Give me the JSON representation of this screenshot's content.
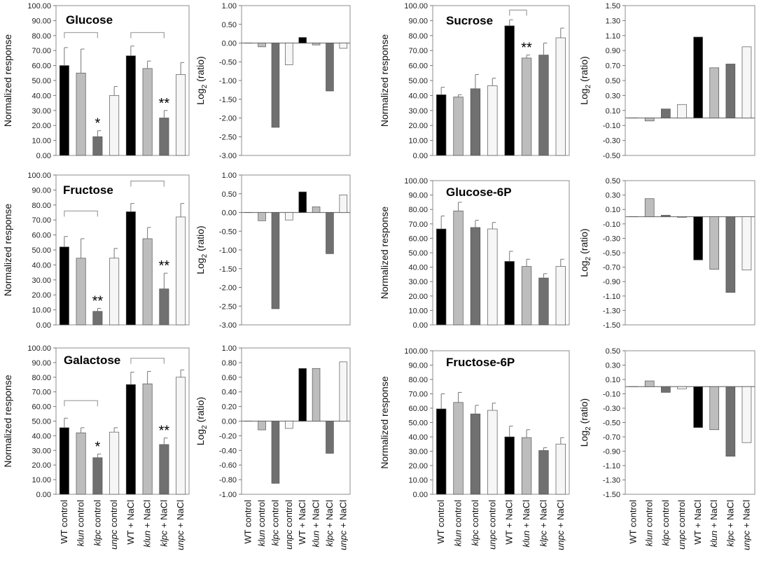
{
  "colors": {
    "wt": "#000000",
    "klun": "#bdbdbd",
    "klpc": "#707070",
    "unpc": "#f6f6f6",
    "bracket": "#a6a6a6",
    "grid": "#d0d0d0"
  },
  "categories": [
    {
      "genotype": "WT",
      "italic": false,
      "condition": " control",
      "fill": "wt"
    },
    {
      "genotype": "klun",
      "italic": true,
      "condition": " control",
      "fill": "klun"
    },
    {
      "genotype": "klpc",
      "italic": true,
      "condition": " control",
      "fill": "klpc"
    },
    {
      "genotype": "unpc",
      "italic": true,
      "condition": " control",
      "fill": "unpc"
    },
    {
      "genotype": "WT",
      "italic": false,
      "condition": " + NaCl",
      "fill": "wt"
    },
    {
      "genotype": "klun",
      "italic": true,
      "condition": " + NaCl",
      "fill": "klun"
    },
    {
      "genotype": "klpc",
      "italic": true,
      "condition": " + NaCl",
      "fill": "klpc"
    },
    {
      "genotype": "unpc",
      "italic": true,
      "condition": " + NaCl",
      "fill": "unpc"
    }
  ],
  "chart_data": [
    {
      "id": "glucose-response",
      "type": "bar",
      "title": "Glucose",
      "ylabel": "Normalized response",
      "ylim": [
        0,
        100
      ],
      "ytick_step": 10,
      "ytick_decimals": 2,
      "values": [
        60,
        55,
        12.5,
        40,
        66.5,
        58,
        25,
        54
      ],
      "errors": [
        12,
        16,
        4,
        6,
        6.5,
        5,
        5,
        8
      ],
      "annotations": [
        {
          "index": 2,
          "text": "*"
        },
        {
          "index": 6,
          "text": "**"
        }
      ],
      "brackets": [
        {
          "from": 0,
          "to": 2,
          "y": 82
        },
        {
          "from": 4,
          "to": 6,
          "y": 82
        }
      ]
    },
    {
      "id": "glucose-log2",
      "type": "bar",
      "title": "",
      "ylabel": "Log2 (ratio)",
      "ylim": [
        -3.0,
        1.0
      ],
      "ytick_step": 0.5,
      "ytick_decimals": 2,
      "values": [
        0,
        -0.1,
        -2.25,
        -0.58,
        0.15,
        -0.05,
        -1.28,
        -0.14
      ]
    },
    {
      "id": "sucrose-response",
      "type": "bar",
      "title": "Sucrose",
      "ylabel": "Normalized response",
      "ylim": [
        0,
        100
      ],
      "ytick_step": 10,
      "ytick_decimals": 2,
      "values": [
        40.5,
        39,
        44.5,
        46.5,
        86.5,
        65,
        67,
        78.5
      ],
      "errors": [
        5,
        1.5,
        9.5,
        5,
        4,
        2,
        8,
        6.5
      ],
      "annotations": [
        {
          "index": 5,
          "text": "**"
        }
      ],
      "brackets": [
        {
          "from": 4,
          "to": 5,
          "y": 97
        }
      ]
    },
    {
      "id": "sucrose-log2",
      "type": "bar",
      "title": "",
      "ylabel": "Log2 (ratio)",
      "ylim": [
        -0.5,
        1.5
      ],
      "ytick_step": 0.2,
      "ytick_start": -0.5,
      "ytick_decimals": 2,
      "values": [
        0,
        -0.04,
        0.12,
        0.18,
        1.08,
        0.67,
        0.72,
        0.95
      ]
    },
    {
      "id": "fructose-response",
      "type": "bar",
      "title": "Fructose",
      "ylabel": "Normalized response",
      "ylim": [
        0,
        100
      ],
      "ytick_step": 10,
      "ytick_decimals": 2,
      "values": [
        52,
        44.5,
        9,
        44.5,
        75.5,
        57.5,
        24,
        72
      ],
      "errors": [
        7,
        13,
        2,
        6.5,
        5.5,
        7.5,
        10.5,
        9
      ],
      "annotations": [
        {
          "index": 2,
          "text": "**"
        },
        {
          "index": 6,
          "text": "**"
        }
      ],
      "brackets": [
        {
          "from": 0,
          "to": 2,
          "y": 76
        },
        {
          "from": 4,
          "to": 6,
          "y": 96
        }
      ]
    },
    {
      "id": "fructose-log2",
      "type": "bar",
      "title": "",
      "ylabel": "Log2 (ratio)",
      "ylim": [
        -3.0,
        1.0
      ],
      "ytick_step": 0.5,
      "ytick_decimals": 2,
      "values": [
        0,
        -0.22,
        -2.57,
        -0.2,
        0.55,
        0.15,
        -1.1,
        0.47
      ]
    },
    {
      "id": "glucose6p-response",
      "type": "bar",
      "title": "Glucose-6P",
      "ylabel": "Normalized response",
      "ylim": [
        0,
        100
      ],
      "ytick_step": 10,
      "ytick_decimals": 2,
      "values": [
        66.5,
        79,
        67.5,
        66.5,
        44,
        40.5,
        32.5,
        40.5
      ],
      "errors": [
        9,
        6,
        5,
        4.5,
        7,
        5,
        3,
        5
      ]
    },
    {
      "id": "glucose6p-log2",
      "type": "bar",
      "title": "",
      "ylabel": "Log2 (ratio)",
      "ylim": [
        -1.5,
        0.5
      ],
      "ytick_step": 0.2,
      "ytick_start": -1.5,
      "ytick_decimals": 2,
      "values": [
        0,
        0.25,
        0.02,
        -0.01,
        -0.6,
        -0.73,
        -1.05,
        -0.74
      ]
    },
    {
      "id": "galactose-response",
      "type": "bar",
      "title": "Galactose",
      "ylabel": "Normalized response",
      "ylim": [
        0,
        100
      ],
      "ytick_step": 10,
      "ytick_decimals": 2,
      "values": [
        45.5,
        42,
        25,
        42.5,
        75,
        75.5,
        34,
        80
      ],
      "errors": [
        6.5,
        3.5,
        2.5,
        3,
        8.5,
        8.5,
        4.5,
        5
      ],
      "annotations": [
        {
          "index": 2,
          "text": "*"
        },
        {
          "index": 6,
          "text": "**"
        }
      ],
      "brackets": [
        {
          "from": 0,
          "to": 2,
          "y": 64
        },
        {
          "from": 4,
          "to": 6,
          "y": 93
        }
      ]
    },
    {
      "id": "galactose-log2",
      "type": "bar",
      "title": "",
      "ylabel": "Log2 (ratio)",
      "ylim": [
        -1.0,
        1.0
      ],
      "ytick_step": 0.2,
      "ytick_decimals": 2,
      "values": [
        0,
        -0.12,
        -0.85,
        -0.1,
        0.72,
        0.72,
        -0.44,
        0.81
      ]
    },
    {
      "id": "fructose6p-response",
      "type": "bar",
      "title": "Fructose-6P",
      "ylabel": "Normalized response",
      "ylim": [
        0,
        100
      ],
      "ytick_step": 10,
      "ytick_decimals": 2,
      "values": [
        59.5,
        64,
        56,
        58.5,
        40,
        39.5,
        30.5,
        35
      ],
      "errors": [
        10.5,
        7,
        6,
        5,
        7.5,
        5.5,
        2,
        4.5
      ]
    },
    {
      "id": "fructose6p-log2",
      "type": "bar",
      "title": "",
      "ylabel": "Log2 (ratio)",
      "ylim": [
        -1.5,
        0.5
      ],
      "ytick_step": 0.2,
      "ytick_start": -1.5,
      "ytick_decimals": 2,
      "values": [
        0,
        0.08,
        -0.08,
        -0.03,
        -0.57,
        -0.6,
        -0.97,
        -0.78
      ]
    }
  ]
}
